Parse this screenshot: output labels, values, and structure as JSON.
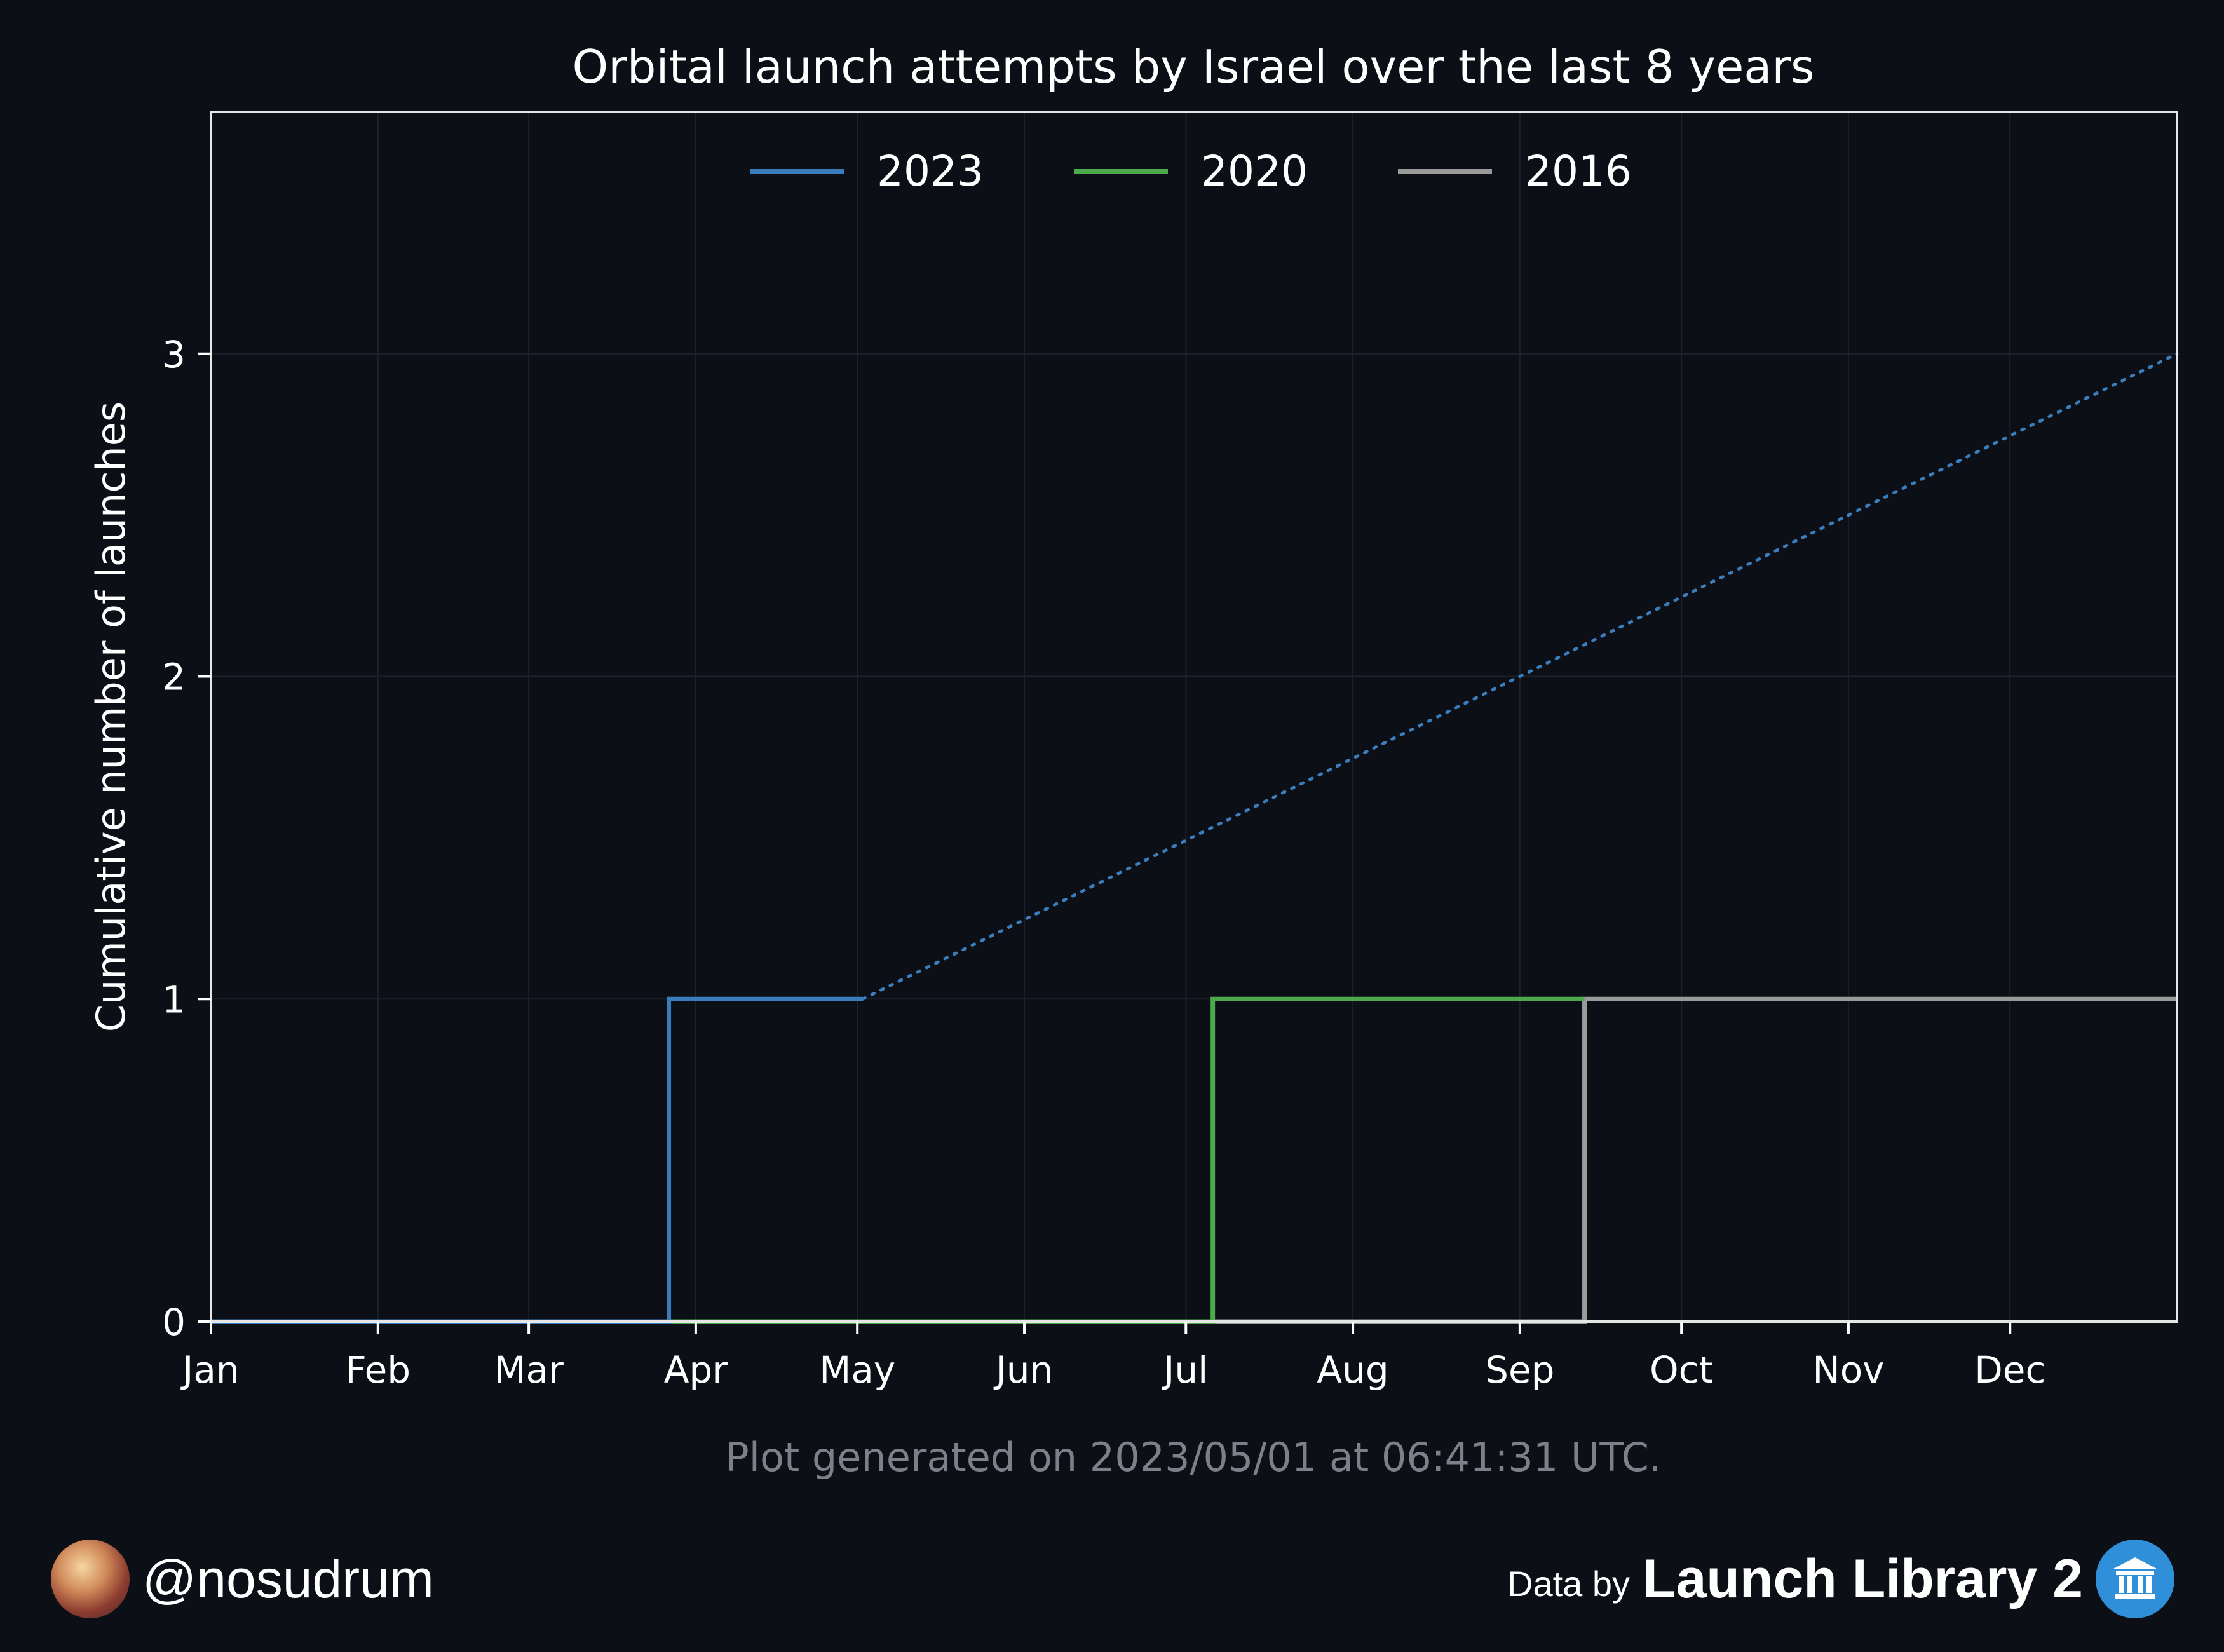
{
  "chart_data": {
    "type": "line",
    "title": "Orbital launch attempts by Israel over the last 8 years",
    "xlabel": "",
    "ylabel": "Cumulative number of launches",
    "x_ticks": [
      "Jan",
      "Feb",
      "Mar",
      "Apr",
      "May",
      "Jun",
      "Jul",
      "Aug",
      "Sep",
      "Oct",
      "Nov",
      "Dec"
    ],
    "xlim_day": [
      0,
      365
    ],
    "y_ticks": [
      "0",
      "1",
      "2",
      "3"
    ],
    "ylim": [
      0,
      3.75
    ],
    "grid": true,
    "legend_placement": "top-center",
    "series": [
      {
        "name": "2023",
        "color": "#3a7dbd",
        "step_points": [
          {
            "day": 0,
            "y": 0
          },
          {
            "day": 85,
            "y": 1
          },
          {
            "day": 121,
            "y": 1
          }
        ],
        "projection": {
          "style": "dotted",
          "from": {
            "day": 121,
            "y": 1
          },
          "to": {
            "day": 365,
            "y": 3
          }
        }
      },
      {
        "name": "2020",
        "color": "#4caa4c",
        "step_points": [
          {
            "day": 0,
            "y": 0
          },
          {
            "day": 186,
            "y": 1
          },
          {
            "day": 255,
            "y": 1
          }
        ]
      },
      {
        "name": "2016",
        "color": "#9a9a9a",
        "step_points": [
          {
            "day": 0,
            "y": 0
          },
          {
            "day": 255,
            "y": 1
          },
          {
            "day": 365,
            "y": 1
          }
        ]
      }
    ]
  },
  "footnote": "Plot generated on 2023/05/01 at 06:41:31 UTC.",
  "credits": {
    "handle": "@nosudrum",
    "source_prefix": "Data by",
    "source_name": "Launch Library 2"
  }
}
